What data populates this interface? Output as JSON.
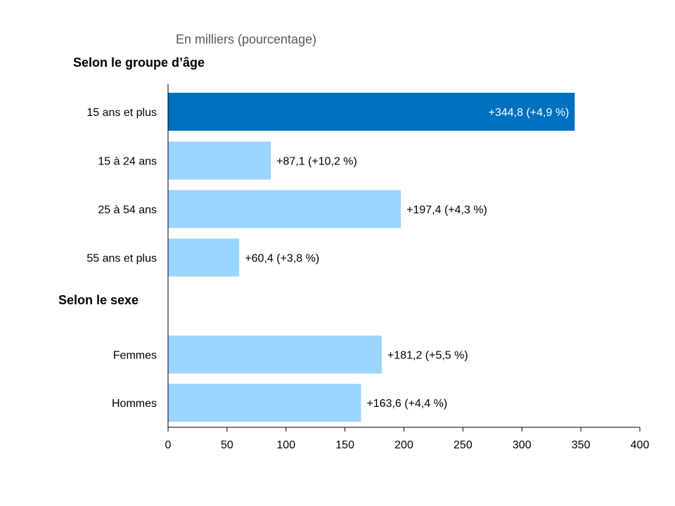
{
  "chart_data": {
    "type": "bar",
    "orientation": "horizontal",
    "subtitle": "En milliers (pourcentage)",
    "group_labels": {
      "age": "Selon le groupe d’âge",
      "sex": "Selon le sexe"
    },
    "categories": [
      "15 ans et plus",
      "15 à 24 ans",
      "25 à 54 ans",
      "55 ans et plus",
      "Femmes",
      "Hommes"
    ],
    "groups": [
      "age",
      "age",
      "age",
      "age",
      "sex",
      "sex"
    ],
    "values": [
      344.8,
      87.1,
      197.4,
      60.4,
      181.2,
      163.6
    ],
    "data_labels": [
      "+344,8 (+4,9 %)",
      "+87,1 (+10,2 %)",
      "+197,4 (+4,3 %)",
      "+60,4 (+3,8 %)",
      "+181,2 (+5,5 %)",
      "+163,6 (+4,4 %)"
    ],
    "highlight_index": 0,
    "xlim": [
      0,
      400
    ],
    "xticks": [
      0,
      50,
      100,
      150,
      200,
      250,
      300,
      350,
      400
    ],
    "grid": false,
    "colors": {
      "highlight": "#0070C0",
      "bar": "#99D5FF",
      "axis": "#000000",
      "subtitle": "#595959",
      "text": "#000000"
    }
  }
}
